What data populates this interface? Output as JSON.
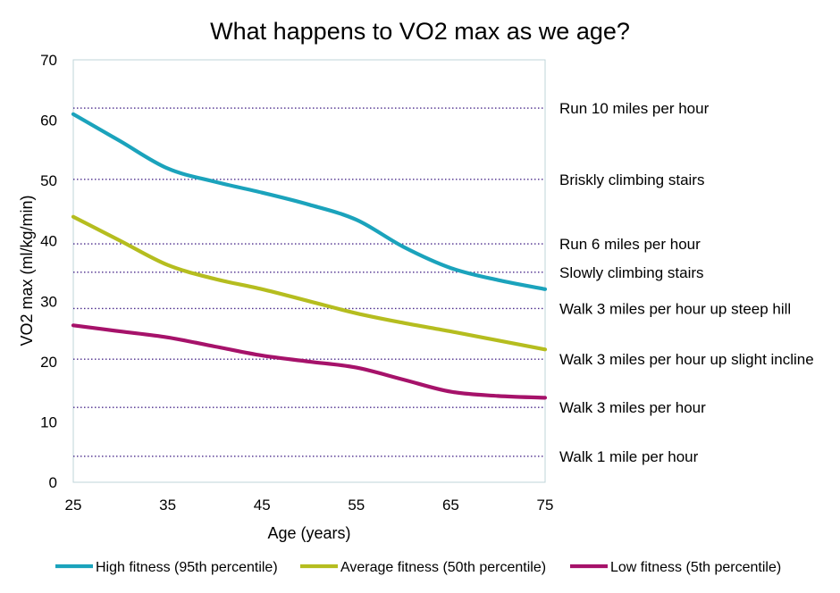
{
  "chart_data": {
    "type": "line",
    "title": "What happens to VO2 max as we age?",
    "xlabel": "Age (years)",
    "ylabel": "VO2 max (ml/kg/min)",
    "xlim": [
      25,
      75
    ],
    "ylim": [
      0,
      70
    ],
    "x_ticks": [
      25,
      35,
      45,
      55,
      65,
      75
    ],
    "y_ticks": [
      0,
      10,
      20,
      30,
      40,
      50,
      60,
      70
    ],
    "grid": false,
    "legend_position": "bottom",
    "series": [
      {
        "name": "High fitness (95th percentile)",
        "color": "#1BA3BC",
        "x": [
          25,
          30,
          35,
          40,
          45,
          50,
          55,
          60,
          65,
          70,
          75
        ],
        "values": [
          61,
          56.5,
          52,
          49.8,
          48,
          46,
          43.5,
          39,
          35.5,
          33.5,
          32
        ]
      },
      {
        "name": "Average fitness (50th percentile)",
        "color": "#B5BD1F",
        "x": [
          25,
          30,
          35,
          40,
          45,
          50,
          55,
          60,
          65,
          70,
          75
        ],
        "values": [
          44,
          40,
          36,
          33.7,
          32,
          30,
          28,
          26.4,
          25,
          23.5,
          22
        ]
      },
      {
        "name": "Low fitness (5th percentile)",
        "color": "#A6126A",
        "x": [
          25,
          30,
          35,
          40,
          45,
          50,
          55,
          60,
          65,
          70,
          75
        ],
        "values": [
          26,
          25,
          24,
          22.5,
          21,
          20,
          19,
          17,
          15,
          14.3,
          14
        ]
      }
    ],
    "reference_lines": [
      {
        "label": "Run 10 miles per hour",
        "value": 62
      },
      {
        "label": "Briskly climbing stairs",
        "value": 50.2
      },
      {
        "label": "Run 6 miles per hour",
        "value": 39.5
      },
      {
        "label": "Slowly climbing stairs",
        "value": 34.8
      },
      {
        "label": "Walk 3 miles per hour up steep hill",
        "value": 28.8
      },
      {
        "label": "Walk 3 miles per hour up slight incline",
        "value": 20.4
      },
      {
        "label": "Walk 3 miles per hour",
        "value": 12.4
      },
      {
        "label": "Walk 1 mile per hour",
        "value": 4.3
      }
    ],
    "reference_line_color": "#4B2C8C"
  }
}
